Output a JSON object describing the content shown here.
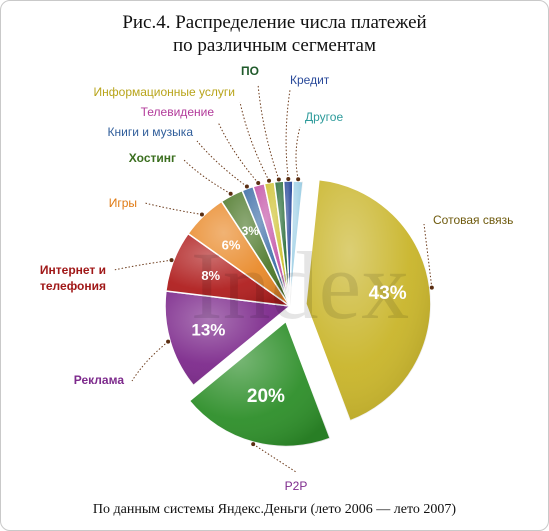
{
  "title": {
    "line1": "Рис.4. Распределение числа платежей",
    "line2": "по различным сегментам"
  },
  "footer": "По данным системы Яндекс.Деньги (лето 2006 — лето 2007)",
  "watermark": "Index",
  "chart_data": {
    "type": "pie",
    "title": "Рис.4. Распределение числа платежей по различным сегментам",
    "slices": [
      {
        "name": "Сотовая связь",
        "value": 43,
        "label": "43%",
        "color": "#c9b52a",
        "label_color": "#6e5a0d"
      },
      {
        "name": "P2P",
        "value": 20,
        "label": "20%",
        "color": "#2e8f2a",
        "label_color": "#7d2a8c"
      },
      {
        "name": "Реклама",
        "value": 13,
        "label": "13%",
        "color": "#7d2a8c",
        "label_color": "#7d2a8c"
      },
      {
        "name": "Интернет и телефония",
        "value": 8,
        "label": "8%",
        "color": "#b01f1f",
        "label_color": "#a01818"
      },
      {
        "name": "Игры",
        "value": 6,
        "label": "6%",
        "color": "#e98a2a",
        "label_color": "#e07a12"
      },
      {
        "name": "Хостинг",
        "value": 3,
        "label": "3%",
        "color": "#4f7a2c",
        "label_color": "#3a6e1e"
      },
      {
        "name": "Книги и музыка",
        "value": 1.5,
        "label": "",
        "color": "#3f6fa8",
        "label_color": "#2f5d9a"
      },
      {
        "name": "Телевидение",
        "value": 1.5,
        "label": "",
        "color": "#c455a8",
        "label_color": "#b23a9a"
      },
      {
        "name": "Информационные услуги",
        "value": 1.3,
        "label": "",
        "color": "#cfc233",
        "label_color": "#b8a41a"
      },
      {
        "name": "ПО",
        "value": 1.2,
        "label": "",
        "color": "#2b6e3a",
        "label_color": "#1f5a2a"
      },
      {
        "name": "Кредит",
        "value": 1.2,
        "label": "",
        "color": "#2a4a9a",
        "label_color": "#2a4a9a"
      },
      {
        "name": "Другое",
        "value": 1.3,
        "label": "",
        "color": "#9fd0e6",
        "label_color": "#2e9b9b"
      }
    ]
  }
}
